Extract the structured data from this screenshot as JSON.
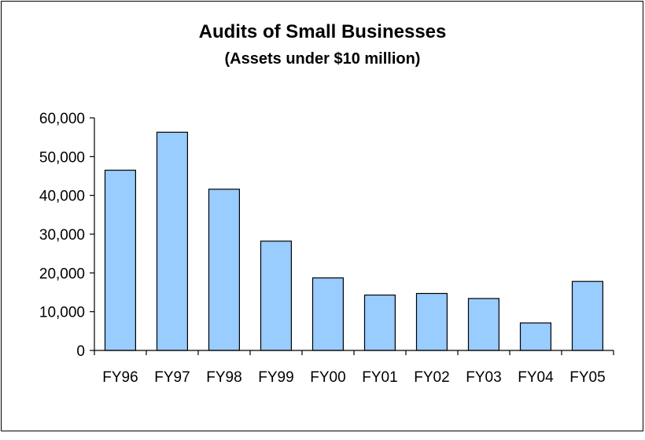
{
  "chart_data": {
    "type": "bar",
    "title": "Audits of Small Businesses",
    "subtitle": "(Assets under $10 million)",
    "xlabel": "",
    "ylabel": "",
    "categories": [
      "FY96",
      "FY97",
      "FY98",
      "FY99",
      "FY00",
      "FY01",
      "FY02",
      "FY03",
      "FY04",
      "FY05"
    ],
    "values": [
      46500,
      56300,
      41600,
      28200,
      18700,
      14300,
      14700,
      13400,
      7100,
      17800
    ],
    "ylim": [
      0,
      60000
    ],
    "yticks": [
      0,
      10000,
      20000,
      30000,
      40000,
      50000,
      60000
    ],
    "ytick_labels": [
      "0",
      "10,000",
      "20,000",
      "30,000",
      "40,000",
      "50,000",
      "60,000"
    ],
    "grid": false,
    "legend": "none",
    "colors": {
      "bar_fill": "#99ccff",
      "bar_stroke": "#000000",
      "axis": "#000000"
    }
  }
}
